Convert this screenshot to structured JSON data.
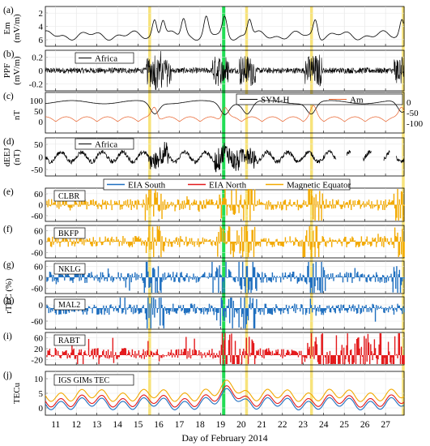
{
  "figure": {
    "xlabel": "Day of February 2014",
    "x_ticks": [
      "11",
      "12",
      "13",
      "14",
      "15",
      "16",
      "17",
      "18",
      "19",
      "20",
      "21",
      "22",
      "23",
      "24",
      "25",
      "26",
      "27"
    ],
    "x_range": [
      10.5,
      27.9
    ],
    "highlight_days": [
      15.55,
      20.25,
      23.4,
      27.85
    ],
    "highlight_color": "#f7e37a",
    "storm_day": 19.15,
    "storm_color": "#22dd55",
    "rtec_axis_label": "rTEC (%)"
  },
  "panels": {
    "a": {
      "tag": "(a)",
      "ylabel_1": "Em",
      "ylabel_2": "(mV/m)",
      "ticks": [
        "2",
        "4",
        "6"
      ]
    },
    "b": {
      "tag": "(b)",
      "ylabel_1": "PPF",
      "ylabel_2": "(mV/m)",
      "ticks": [
        "0.2",
        "0",
        "-0.2"
      ],
      "legend": "Africa"
    },
    "c": {
      "tag": "(c)",
      "ylabel_1": "nT",
      "left_ticks": [
        "100",
        "50",
        "0"
      ],
      "right_ticks": [
        "0",
        "-50",
        "-100"
      ],
      "legend_1": "SYM-H",
      "legend_2": "Am"
    },
    "d": {
      "tag": "(d)",
      "ylabel_1": "dEEJ",
      "ylabel_2": "(nT)",
      "ticks": [
        "50",
        "0",
        "-50"
      ],
      "legend": "Africa"
    },
    "e": {
      "tag": "(e)",
      "station": "CLBR",
      "ticks": [
        "60",
        "0",
        "-60"
      ]
    },
    "f": {
      "tag": "(f)",
      "station": "BKFP",
      "ticks": [
        "60",
        "0",
        "-60"
      ]
    },
    "g": {
      "tag": "(g)",
      "station": "NKLG",
      "ticks": [
        "60",
        "0",
        "-60"
      ]
    },
    "h": {
      "tag": "(h)",
      "station": "MAL2",
      "ticks": [
        "0",
        "-60"
      ]
    },
    "i": {
      "tag": "(i)",
      "station": "RABT",
      "ticks": [
        "60",
        "20",
        "-20"
      ]
    },
    "j": {
      "tag": "(j)",
      "ylabel_1": "TECu",
      "ticks": [
        "10",
        "5",
        "0"
      ],
      "legend": "IGS GIMs TEC"
    }
  },
  "legend_eia": [
    {
      "label": "EIA South",
      "color": "#1f6fbf"
    },
    {
      "label": "EIA North",
      "color": "#e31a1c"
    },
    {
      "label": "Magnetic Equator",
      "color": "#f2a900"
    }
  ],
  "colors": {
    "ppf": "#000000",
    "symh": "#000000",
    "am": "#e8622c",
    "eia_south": "#1f6fbf",
    "eia_north": "#e31a1c",
    "mag_eq": "#f2a900"
  }
}
